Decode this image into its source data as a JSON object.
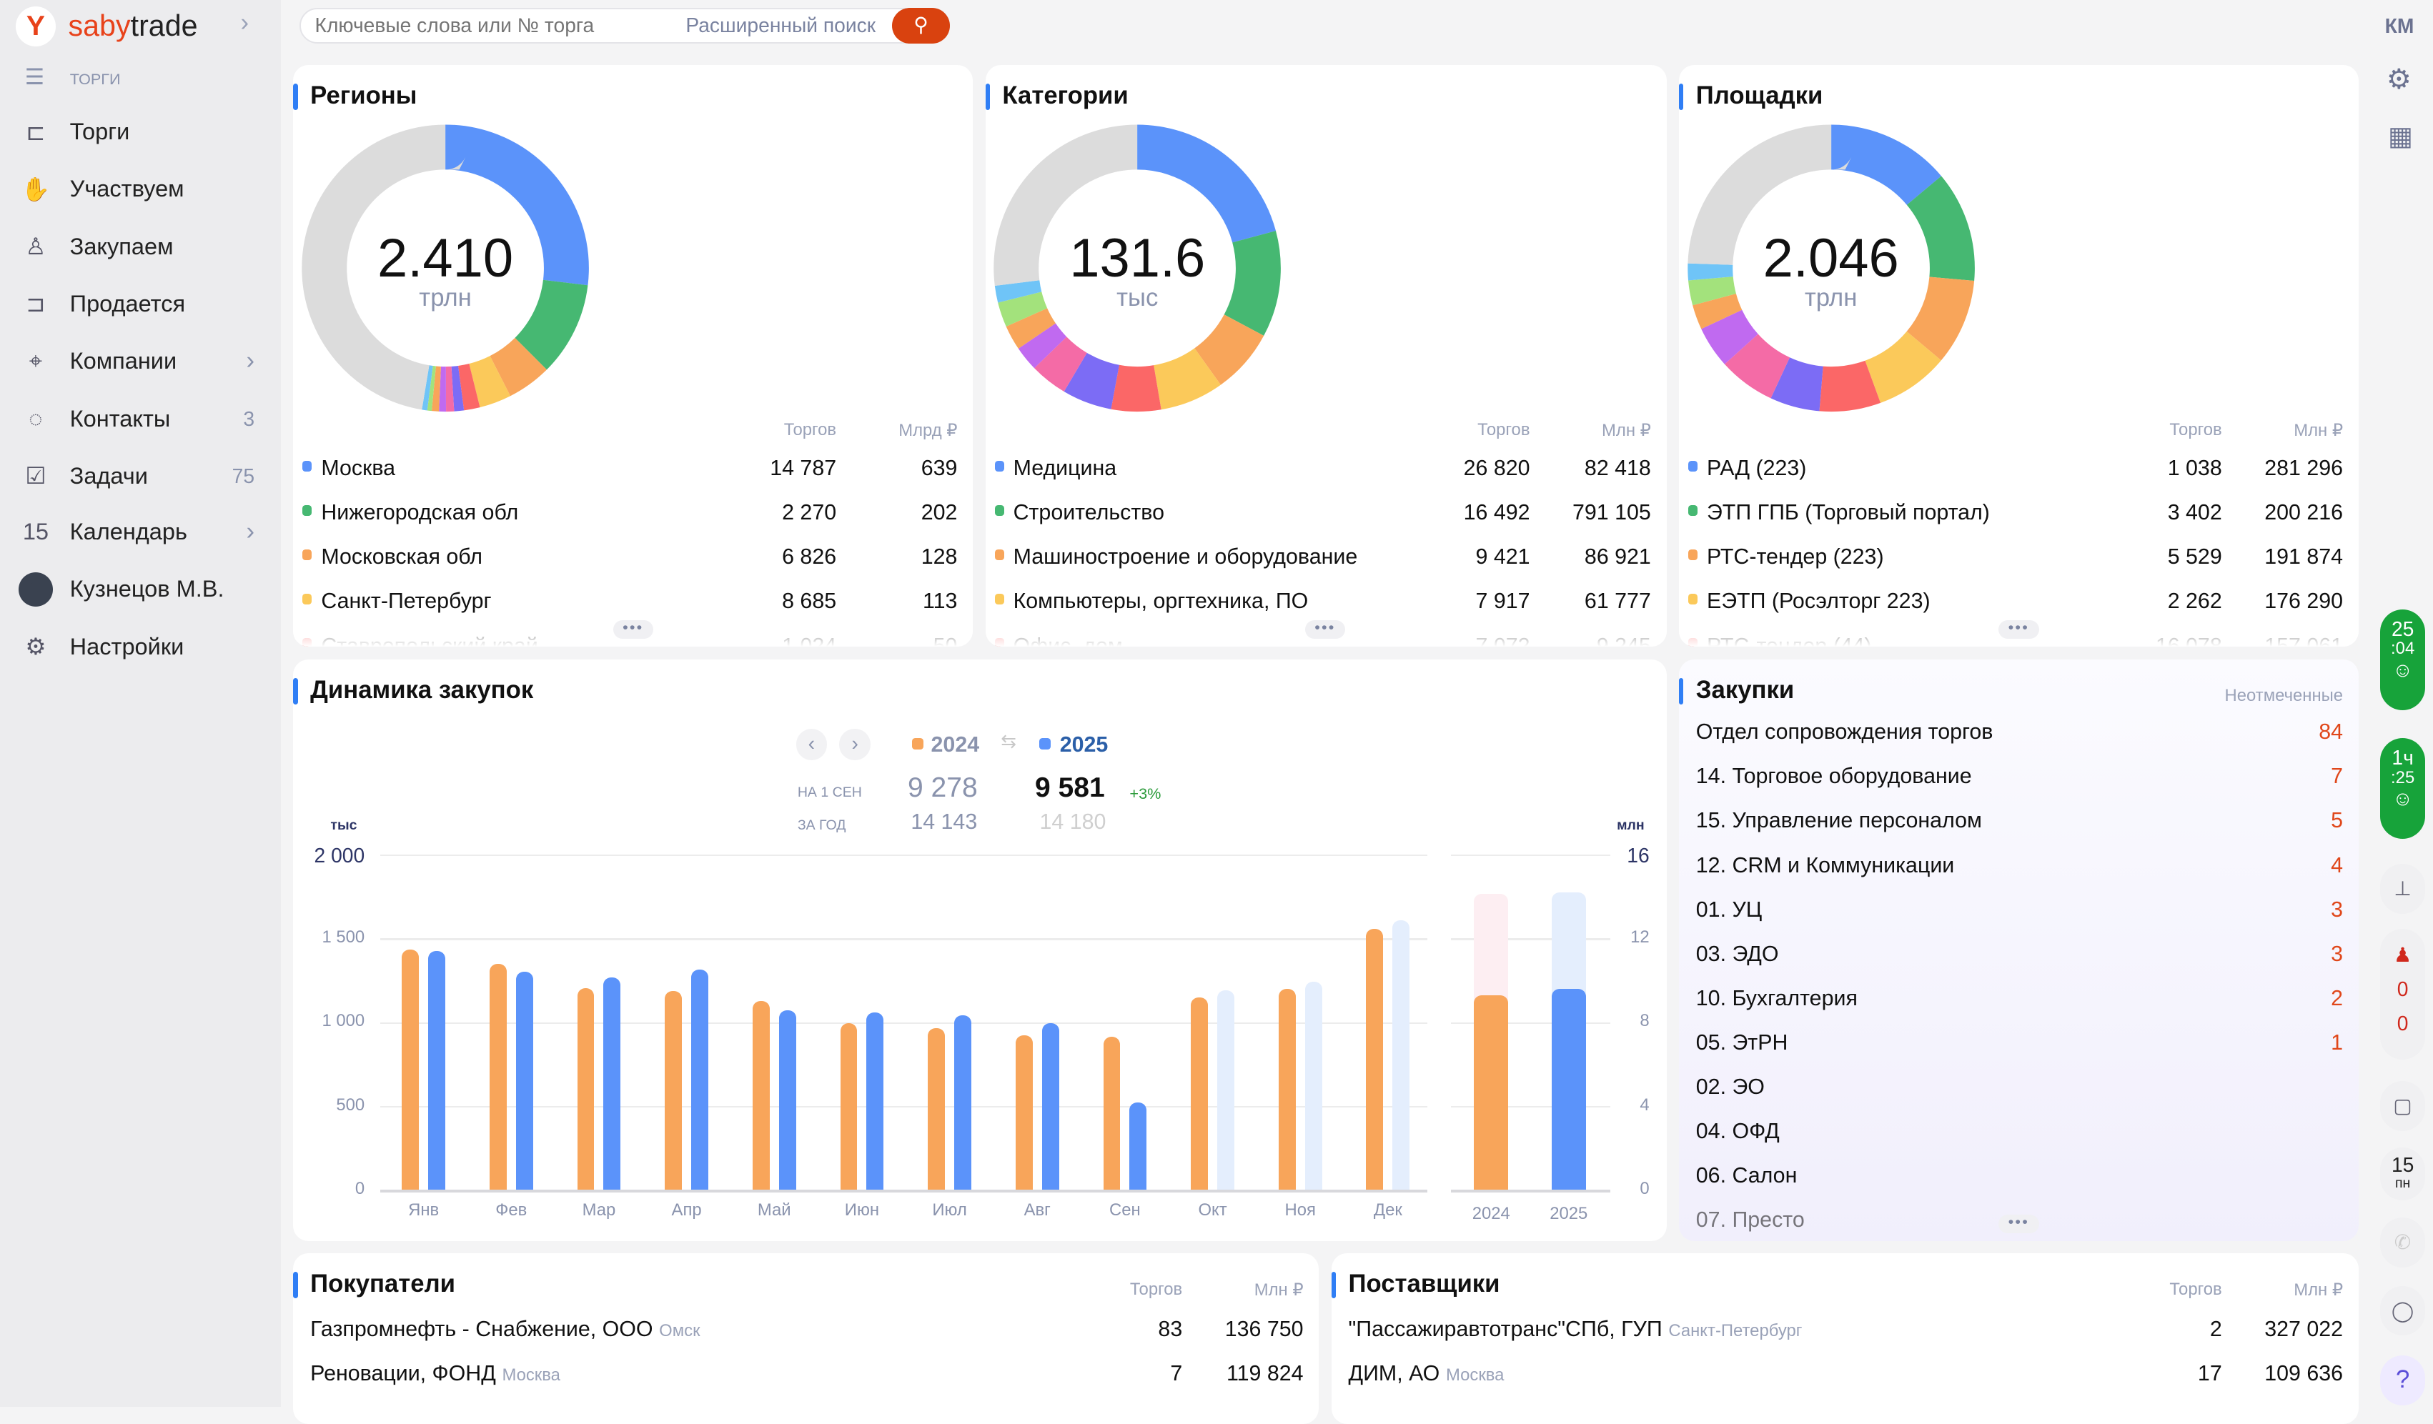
{
  "app": {
    "brand_a": "saby",
    "brand_b": "trade",
    "section": "ТОРГИ",
    "user_initials": "КМ"
  },
  "search": {
    "placeholder": "Ключевые слова или № торга",
    "advanced": "Расширенный поиск"
  },
  "sidebar": {
    "items": [
      {
        "label": "Торги",
        "icon": "gavel-icon"
      },
      {
        "label": "Участвуем",
        "icon": "coins-hand-icon"
      },
      {
        "label": "Закупаем",
        "icon": "buyer-icon"
      },
      {
        "label": "Продается",
        "icon": "seller-icon"
      },
      {
        "label": "Компании",
        "icon": "company-pin-icon",
        "chevron": true
      },
      {
        "label": "Контакты",
        "icon": "chat-icon",
        "count": "3"
      },
      {
        "label": "Задачи",
        "icon": "clipboard-check-icon",
        "count": "75"
      },
      {
        "label": "Календарь",
        "icon": "calendar-icon",
        "icon_text": "15",
        "chevron": true
      },
      {
        "label": "Кузнецов М.В.",
        "icon": "avatar"
      },
      {
        "label": "Настройки",
        "icon": "gear-icon"
      }
    ]
  },
  "colors": {
    "blue": "#5b93fa",
    "green": "#46b872",
    "orange": "#f8a55a",
    "yellow": "#fbc95a",
    "red": "#fb6767",
    "purple": "#7c6cf5",
    "pink": "#f46ba6",
    "violet": "#c06af0",
    "lime": "#a3e27c",
    "sky": "#6fc4f7",
    "gray": "#dcdcdc",
    "accent": "#e8421a"
  },
  "regions": {
    "title": "Регионы",
    "total": "2.410",
    "unit": "трлн",
    "col1": "Торгов",
    "col2": "Млрд ₽",
    "segments": [
      26.9,
      10.6,
      5,
      3.6,
      1.8,
      1.1,
      0.9,
      0.8,
      0.8,
      0.5,
      0.6,
      47.4
    ],
    "rows": [
      [
        "Москва",
        "14 787",
        "639",
        "blue"
      ],
      [
        "Нижегородская обл",
        "2 270",
        "202",
        "green"
      ],
      [
        "Московская обл",
        "6 826",
        "128",
        "orange"
      ],
      [
        "Санкт-Петербург",
        "8 685",
        "113",
        "yellow"
      ],
      [
        "Ставропольский край",
        "1 024",
        "50",
        "red"
      ]
    ]
  },
  "categories": {
    "title": "Категории",
    "total": "131.6",
    "unit": "тыс",
    "col1": "Торгов",
    "col2": "Млн ₽",
    "segments": [
      20.8,
      12,
      7.3,
      7.2,
      5.6,
      5.6,
      4.2,
      2.8,
      2.8,
      2.8,
      1.9,
      27
    ],
    "rows": [
      [
        "Медицина",
        "26 820",
        "82 418",
        "blue"
      ],
      [
        "Строительство",
        "16 492",
        "791 105",
        "green"
      ],
      [
        "Машиностроение и оборудование",
        "9 421",
        "86 921",
        "orange"
      ],
      [
        "Компьютеры, оргтехника, ПО",
        "7 917",
        "61 777",
        "yellow"
      ],
      [
        "Офис, дом",
        "7 072",
        "9 245",
        "red"
      ]
    ]
  },
  "platforms": {
    "title": "Площадки",
    "total": "2.046",
    "unit": "трлн",
    "col1": "Торгов",
    "col2": "Млн ₽",
    "segments": [
      13.9,
      12.5,
      9.7,
      8.3,
      6.9,
      5.6,
      6.4,
      4.7,
      2.8,
      2.8,
      1.9,
      24.5
    ],
    "rows": [
      [
        "РАД (223)",
        "1 038",
        "281 296",
        "blue"
      ],
      [
        "ЭТП ГПБ (Торговый портал)",
        "3 402",
        "200 216",
        "green"
      ],
      [
        "РТС-тендер (223)",
        "5 529",
        "191 874",
        "orange"
      ],
      [
        "ЕЭТП (Росэлторг 223)",
        "2 262",
        "176 290",
        "yellow"
      ],
      [
        "РТС-тендер (44)",
        "16 078",
        "157 061",
        "red"
      ]
    ]
  },
  "dynamics": {
    "title": "Динамика закупок",
    "legend_2024": "2024",
    "legend_2025": "2025",
    "row1_label": "НА 1 СЕН",
    "row2_label": "ЗА ГОД",
    "v2024_ytd": "9 278",
    "v2025_ytd": "9 581",
    "delta": "+3%",
    "v2024_year": "14 143",
    "v2025_year": "14 180"
  },
  "chart_data": [
    {
      "type": "bar",
      "ylabel": "тыс",
      "ylim": [
        0,
        2000
      ],
      "yticks": [
        "0",
        "500",
        "1 000",
        "1 500",
        "2 000"
      ],
      "categories": [
        "Янв",
        "Фев",
        "Мар",
        "Апр",
        "Май",
        "Июн",
        "Июл",
        "Авг",
        "Сен",
        "Окт",
        "Ноя",
        "Дек"
      ],
      "series": [
        {
          "name": "2024",
          "color": "#f8a55a",
          "values": [
            1435,
            1350,
            1205,
            1188,
            1128,
            992,
            966,
            923,
            915,
            1146,
            1198,
            1556
          ]
        },
        {
          "name": "2025",
          "color": "#5b93fa",
          "values": [
            1427,
            1300,
            1265,
            1316,
            1069,
            1059,
            1043,
            992,
            520,
            1190,
            1241,
            1607
          ],
          "forecast_from_index": 9
        }
      ]
    },
    {
      "type": "bar",
      "ylabel": "млн",
      "ylim": [
        0,
        16
      ],
      "yticks": [
        "0",
        "4",
        "8",
        "12",
        "16"
      ],
      "categories": [
        "2024",
        "2025"
      ],
      "series": [
        {
          "name": "на 1 сен",
          "values": [
            9.278,
            9.581
          ]
        },
        {
          "name": "за год",
          "values": [
            14.143,
            14.18
          ]
        }
      ]
    }
  ],
  "purchases": {
    "title": "Закупки",
    "unmarked": "Неотмеченные",
    "items": [
      [
        "Отдел сопровождения торгов",
        "84"
      ],
      [
        "14. Торговое оборудование",
        "7"
      ],
      [
        "15. Управление персоналом",
        "5"
      ],
      [
        "12. CRM и Коммуникации",
        "4"
      ],
      [
        "01. УЦ",
        "3"
      ],
      [
        "03. ЭДО",
        "3"
      ],
      [
        "10. Бухгалтерия",
        "2"
      ],
      [
        "05. ЭтРН",
        "1"
      ],
      [
        "02. ЭО",
        ""
      ],
      [
        "04. ОФД",
        ""
      ],
      [
        "06. Салон",
        ""
      ],
      [
        "07. Престо",
        ""
      ]
    ]
  },
  "buyers": {
    "title": "Покупатели",
    "col1": "Торгов",
    "col2": "Млн ₽",
    "rows": [
      [
        "Газпромнефть - Снабжение, ООО",
        "Омск",
        "83",
        "136 750"
      ],
      [
        "Реновации, ФОНД",
        "Москва",
        "7",
        "119 824"
      ]
    ]
  },
  "suppliers": {
    "title": "Поставщики",
    "col1": "Торгов",
    "col2": "Млн ₽",
    "rows": [
      [
        "\"Пассажиравтотранс\"СПб, ГУП",
        "Санкт-Петербург",
        "2",
        "327 022"
      ],
      [
        "ДИМ, АО",
        "Москва",
        "17",
        "109 636"
      ]
    ]
  },
  "rail": {
    "timer1_a": "25",
    "timer1_b": ":04",
    "timer2_a": "1ч",
    "timer2_b": ":25",
    "alerts_a": "0",
    "alerts_b": "0",
    "cal_day": "15",
    "cal_wd": "пн",
    "help": "?"
  }
}
